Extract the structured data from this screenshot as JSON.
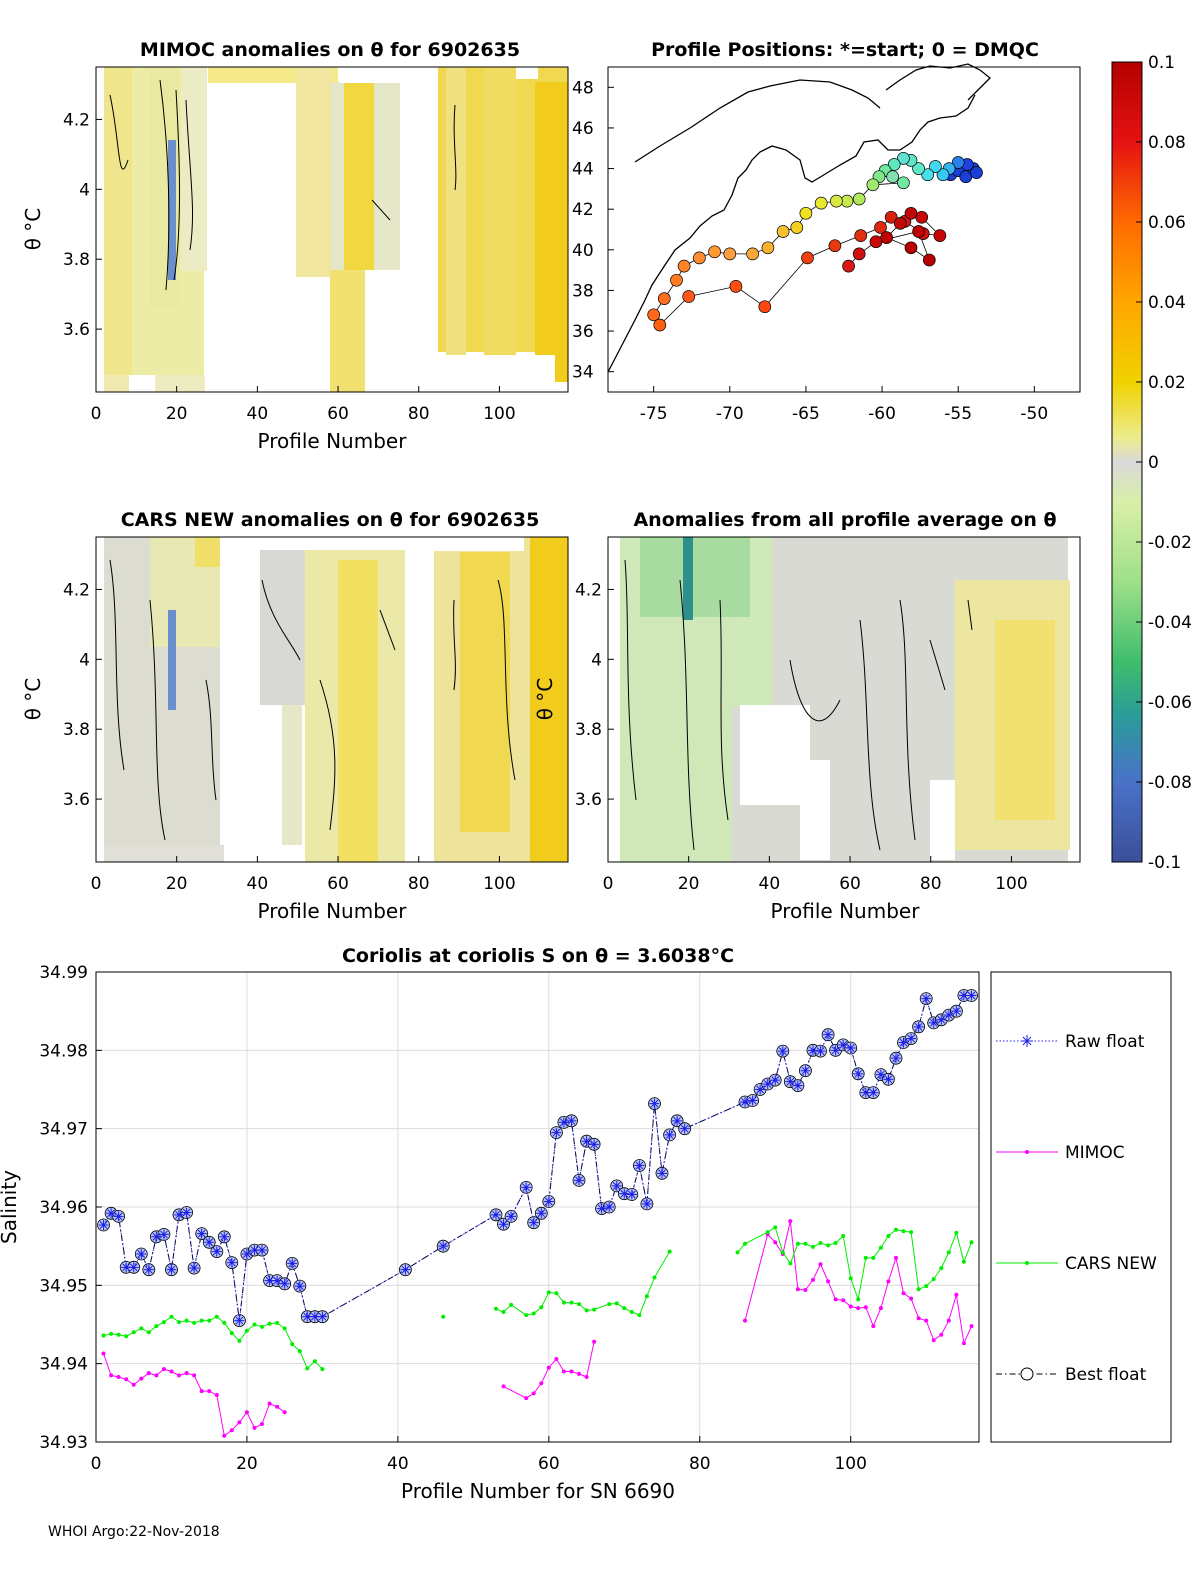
{
  "footer": "WHOI Argo:22-Nov-2018",
  "colorbar": {
    "ticks": [
      "0.1",
      "0.08",
      "0.06",
      "0.04",
      "0.02",
      "0",
      "-0.02",
      "-0.04",
      "-0.06",
      "-0.08",
      "-0.1"
    ],
    "range": [
      -0.1,
      0.1
    ]
  },
  "chart_data": [
    {
      "type": "heatmap",
      "title": "MIMOC anomalies on θ  for 6902635",
      "xlabel": "Profile Number",
      "ylabel": "θ °C",
      "xticks": [
        "0",
        "20",
        "40",
        "60",
        "80",
        "100"
      ],
      "yticks": [
        "4.2",
        "4",
        "3.8",
        "3.6"
      ],
      "xlim": [
        0,
        117
      ],
      "ylim": [
        3.42,
        4.35
      ]
    },
    {
      "type": "scatter",
      "title": "Profile Positions: *=start; 0 = DMQC",
      "xticks": [
        "-75",
        "-70",
        "-65",
        "-60",
        "-55",
        "-50"
      ],
      "yticks": [
        "48",
        "46",
        "44",
        "42",
        "40",
        "38",
        "36",
        "34"
      ],
      "xlim": [
        -78,
        -47
      ],
      "ylim": [
        33,
        49
      ]
    },
    {
      "type": "heatmap",
      "title": "CARS NEW anomalies on θ for 6902635",
      "xlabel": "Profile Number",
      "ylabel": "θ °C",
      "xticks": [
        "0",
        "20",
        "40",
        "60",
        "80",
        "100"
      ],
      "yticks": [
        "4.2",
        "4",
        "3.8",
        "3.6"
      ],
      "xlim": [
        0,
        117
      ],
      "ylim": [
        3.42,
        4.35
      ]
    },
    {
      "type": "heatmap",
      "title": "Anomalies from all profile average on θ",
      "xlabel": "Profile Number",
      "ylabel": "θ °C",
      "xticks": [
        "0",
        "20",
        "40",
        "60",
        "80",
        "100"
      ],
      "yticks": [
        "4.2",
        "4",
        "3.8",
        "3.6"
      ],
      "xlim": [
        0,
        117
      ],
      "ylim": [
        3.42,
        4.35
      ]
    },
    {
      "type": "line",
      "title": "Coriolis at coriolis S on θ = 3.6038°C",
      "xlabel": "Profile Number for SN 6690",
      "ylabel": "Salinity",
      "xticks": [
        "0",
        "20",
        "40",
        "60",
        "80",
        "100"
      ],
      "yticks": [
        "34.99",
        "34.98",
        "34.97",
        "34.96",
        "34.95",
        "34.94",
        "34.93"
      ],
      "xlim": [
        0,
        117
      ],
      "ylim": [
        34.93,
        34.99
      ],
      "grid": true,
      "legend_position": "right",
      "series": [
        {
          "name": "Raw float",
          "color": "#1e1ee6",
          "x": [
            1,
            2,
            3,
            4,
            5,
            6,
            7,
            8,
            9,
            10,
            11,
            12,
            13,
            14,
            15,
            16,
            17,
            18,
            19,
            20,
            21,
            22,
            23,
            24,
            25,
            26,
            27,
            28,
            29,
            30,
            41,
            46,
            53,
            54,
            55,
            57,
            58,
            59,
            60,
            61,
            62,
            63,
            64,
            65,
            66,
            67,
            68,
            69,
            70,
            71,
            72,
            73,
            74,
            75,
            76,
            77,
            78,
            86,
            87,
            88,
            89,
            90,
            91,
            92,
            93,
            94,
            95,
            96,
            97,
            98,
            99,
            100,
            101,
            102,
            103,
            104,
            105,
            106,
            107,
            108,
            109,
            110,
            111,
            112,
            113,
            114,
            115,
            116
          ],
          "values": [
            34.9577,
            34.9592,
            34.9588,
            34.9523,
            34.9523,
            34.954,
            34.952,
            34.9562,
            34.9565,
            34.952,
            34.959,
            34.9593,
            34.9522,
            34.9566,
            34.9555,
            34.9543,
            34.9562,
            34.9529,
            34.9455,
            34.954,
            34.9545,
            34.9545,
            34.9506,
            34.9506,
            34.9502,
            34.9528,
            34.9499,
            34.946,
            34.946,
            34.946,
            34.952,
            34.955,
            34.959,
            34.9578,
            34.9588,
            34.9625,
            34.958,
            34.9592,
            34.9607,
            34.9695,
            34.9708,
            34.971,
            34.9634,
            34.9684,
            34.968,
            34.9598,
            34.96,
            34.9627,
            34.9617,
            34.9616,
            34.9653,
            34.9604,
            34.9732,
            34.9643,
            34.9692,
            34.971,
            34.97,
            34.9734,
            34.9736,
            34.975,
            34.9757,
            34.9762,
            34.9799,
            34.976,
            34.9755,
            34.9774,
            34.98,
            34.9799,
            34.982,
            34.98,
            34.9807,
            34.9803,
            34.977,
            34.9746,
            34.9746,
            34.9769,
            34.9763,
            34.979,
            34.981,
            34.9815,
            34.983,
            34.9866,
            34.9835,
            34.9839,
            34.9845,
            34.985,
            34.987,
            34.987
          ]
        },
        {
          "name": "MIMOC",
          "color": "#ff00ff",
          "x": [
            1,
            2,
            3,
            4,
            5,
            6,
            7,
            8,
            9,
            10,
            11,
            12,
            13,
            14,
            15,
            16,
            17,
            18,
            19,
            20,
            21,
            22,
            23,
            24,
            25,
            54,
            57,
            58,
            59,
            60,
            61,
            62,
            63,
            64,
            65,
            66,
            86,
            89,
            90,
            91,
            92,
            93,
            94,
            95,
            96,
            97,
            98,
            99,
            100,
            101,
            102,
            103,
            104,
            105,
            106,
            107,
            108,
            109,
            110,
            111,
            112,
            113,
            114,
            115,
            116
          ],
          "values": [
            34.9413,
            34.9385,
            34.9383,
            34.938,
            34.9373,
            34.9381,
            34.9388,
            34.9385,
            34.9393,
            34.939,
            34.9385,
            34.9388,
            34.9385,
            34.9365,
            34.9365,
            34.936,
            34.9308,
            34.9315,
            34.9325,
            34.9338,
            34.9318,
            34.9323,
            34.9349,
            34.9345,
            34.9338,
            34.9371,
            34.9356,
            34.9362,
            34.9375,
            34.9395,
            34.9406,
            34.939,
            34.939,
            34.9387,
            34.9383,
            34.9428,
            34.9455,
            34.9565,
            34.9555,
            34.954,
            34.9582,
            34.9495,
            34.9494,
            34.9507,
            34.9527,
            34.9505,
            34.9482,
            34.9481,
            34.9473,
            34.9471,
            34.9472,
            34.9448,
            34.9471,
            34.9505,
            34.9535,
            34.949,
            34.9483,
            34.9458,
            34.9455,
            34.943,
            34.9437,
            34.9455,
            34.9488,
            34.9426,
            34.9448
          ]
        },
        {
          "name": "CARS NEW",
          "color": "#00ee00",
          "x": [
            1,
            2,
            3,
            4,
            5,
            6,
            7,
            8,
            9,
            10,
            11,
            12,
            13,
            14,
            15,
            16,
            17,
            18,
            19,
            20,
            21,
            22,
            23,
            24,
            25,
            26,
            27,
            28,
            29,
            30,
            46,
            53,
            54,
            55,
            57,
            58,
            59,
            60,
            61,
            62,
            63,
            64,
            65,
            66,
            68,
            69,
            70,
            71,
            72,
            73,
            74,
            76,
            85,
            86,
            89,
            90,
            91,
            92,
            93,
            94,
            95,
            96,
            97,
            98,
            99,
            100,
            101,
            102,
            103,
            104,
            105,
            106,
            107,
            108,
            109,
            110,
            111,
            112,
            113,
            114,
            115,
            116
          ],
          "values": [
            34.9436,
            34.9438,
            34.9437,
            34.9435,
            34.944,
            34.9445,
            34.944,
            34.9448,
            34.9453,
            34.946,
            34.9453,
            34.9455,
            34.9452,
            34.9455,
            34.9455,
            34.946,
            34.9452,
            34.9439,
            34.9429,
            34.9442,
            34.945,
            34.9447,
            34.9451,
            34.9452,
            34.9445,
            34.9425,
            34.9416,
            34.9394,
            34.9403,
            34.9393,
            34.946,
            34.947,
            34.9466,
            34.9475,
            34.9462,
            34.9464,
            34.9472,
            34.9491,
            34.949,
            34.9478,
            34.9478,
            34.9476,
            34.9468,
            34.9469,
            34.9476,
            34.9477,
            34.9471,
            34.9466,
            34.9462,
            34.9486,
            34.951,
            34.9543,
            34.9542,
            34.9553,
            34.9568,
            34.9574,
            34.9542,
            34.9528,
            34.9553,
            34.9553,
            34.9549,
            34.9554,
            34.9551,
            34.9554,
            34.9563,
            34.9509,
            34.9482,
            34.9535,
            34.9535,
            34.9548,
            34.9563,
            34.9571,
            34.9569,
            34.9568,
            34.9495,
            34.9499,
            34.9508,
            34.9522,
            34.9542,
            34.9567,
            34.953,
            34.9555
          ]
        },
        {
          "name": "Best float",
          "color": "#000080",
          "x": [
            1,
            2,
            3,
            4,
            5,
            6,
            7,
            8,
            9,
            10,
            11,
            12,
            13,
            14,
            15,
            16,
            17,
            18,
            19,
            20,
            21,
            22,
            23,
            24,
            25,
            26,
            27,
            28,
            29,
            30,
            41,
            46,
            53,
            54,
            55,
            57,
            58,
            59,
            60,
            61,
            62,
            63,
            64,
            65,
            66,
            67,
            68,
            69,
            70,
            71,
            72,
            73,
            74,
            75,
            76,
            77,
            78,
            86,
            87,
            88,
            89,
            90,
            91,
            92,
            93,
            94,
            95,
            96,
            97,
            98,
            99,
            100,
            101,
            102,
            103,
            104,
            105,
            106,
            107,
            108,
            109,
            110,
            111,
            112,
            113,
            114,
            115,
            116
          ],
          "values": [
            34.9577,
            34.9592,
            34.9588,
            34.9523,
            34.9523,
            34.954,
            34.952,
            34.9562,
            34.9565,
            34.952,
            34.959,
            34.9593,
            34.9522,
            34.9566,
            34.9555,
            34.9543,
            34.9562,
            34.9529,
            34.9455,
            34.954,
            34.9545,
            34.9545,
            34.9506,
            34.9506,
            34.9502,
            34.9528,
            34.9499,
            34.946,
            34.946,
            34.946,
            34.952,
            34.955,
            34.959,
            34.9578,
            34.9588,
            34.9625,
            34.958,
            34.9592,
            34.9607,
            34.9695,
            34.9708,
            34.971,
            34.9634,
            34.9684,
            34.968,
            34.9598,
            34.96,
            34.9627,
            34.9617,
            34.9616,
            34.9653,
            34.9604,
            34.9732,
            34.9643,
            34.9692,
            34.971,
            34.97,
            34.9734,
            34.9736,
            34.975,
            34.9757,
            34.9762,
            34.9799,
            34.976,
            34.9755,
            34.9774,
            34.98,
            34.9799,
            34.982,
            34.98,
            34.9807,
            34.9803,
            34.977,
            34.9746,
            34.9746,
            34.9769,
            34.9763,
            34.979,
            34.981,
            34.9815,
            34.983,
            34.9866,
            34.9835,
            34.9839,
            34.9845,
            34.985,
            34.987,
            34.987
          ]
        }
      ]
    }
  ]
}
